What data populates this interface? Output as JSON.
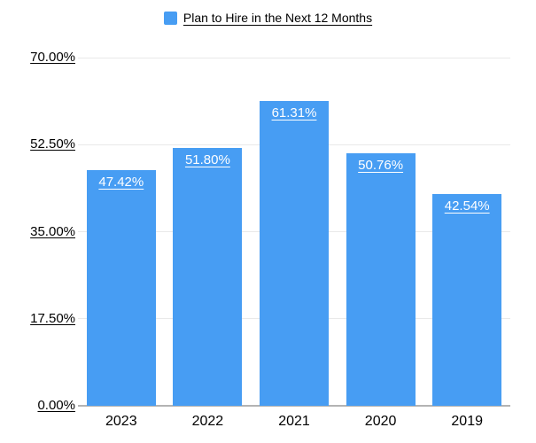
{
  "chart_data": {
    "type": "bar",
    "categories": [
      "2023",
      "2022",
      "2021",
      "2020",
      "2019"
    ],
    "values": [
      47.42,
      51.8,
      61.31,
      50.76,
      42.54
    ],
    "value_labels": [
      "47.42%",
      "51.80%",
      "61.31%",
      "50.76%",
      "42.54%"
    ],
    "title": "",
    "xlabel": "",
    "ylabel": "",
    "ylim": [
      0,
      70
    ],
    "yticks": [
      0,
      17.5,
      35,
      52.5,
      70
    ],
    "ytick_labels": [
      "0.00%",
      "17.50%",
      "35.00%",
      "52.50%",
      "70.00%"
    ],
    "legend": [
      "Plan to Hire in the Next 12 Months"
    ],
    "legend_position": "top-center",
    "grid": true,
    "colors": {
      "bar": "#479DF3",
      "grid": "#E9E9E9",
      "axis_line": "#B3B3B3",
      "bar_label_text": "#FFFFFF",
      "axis_text": "#000000",
      "background": "#FFFFFF"
    }
  }
}
